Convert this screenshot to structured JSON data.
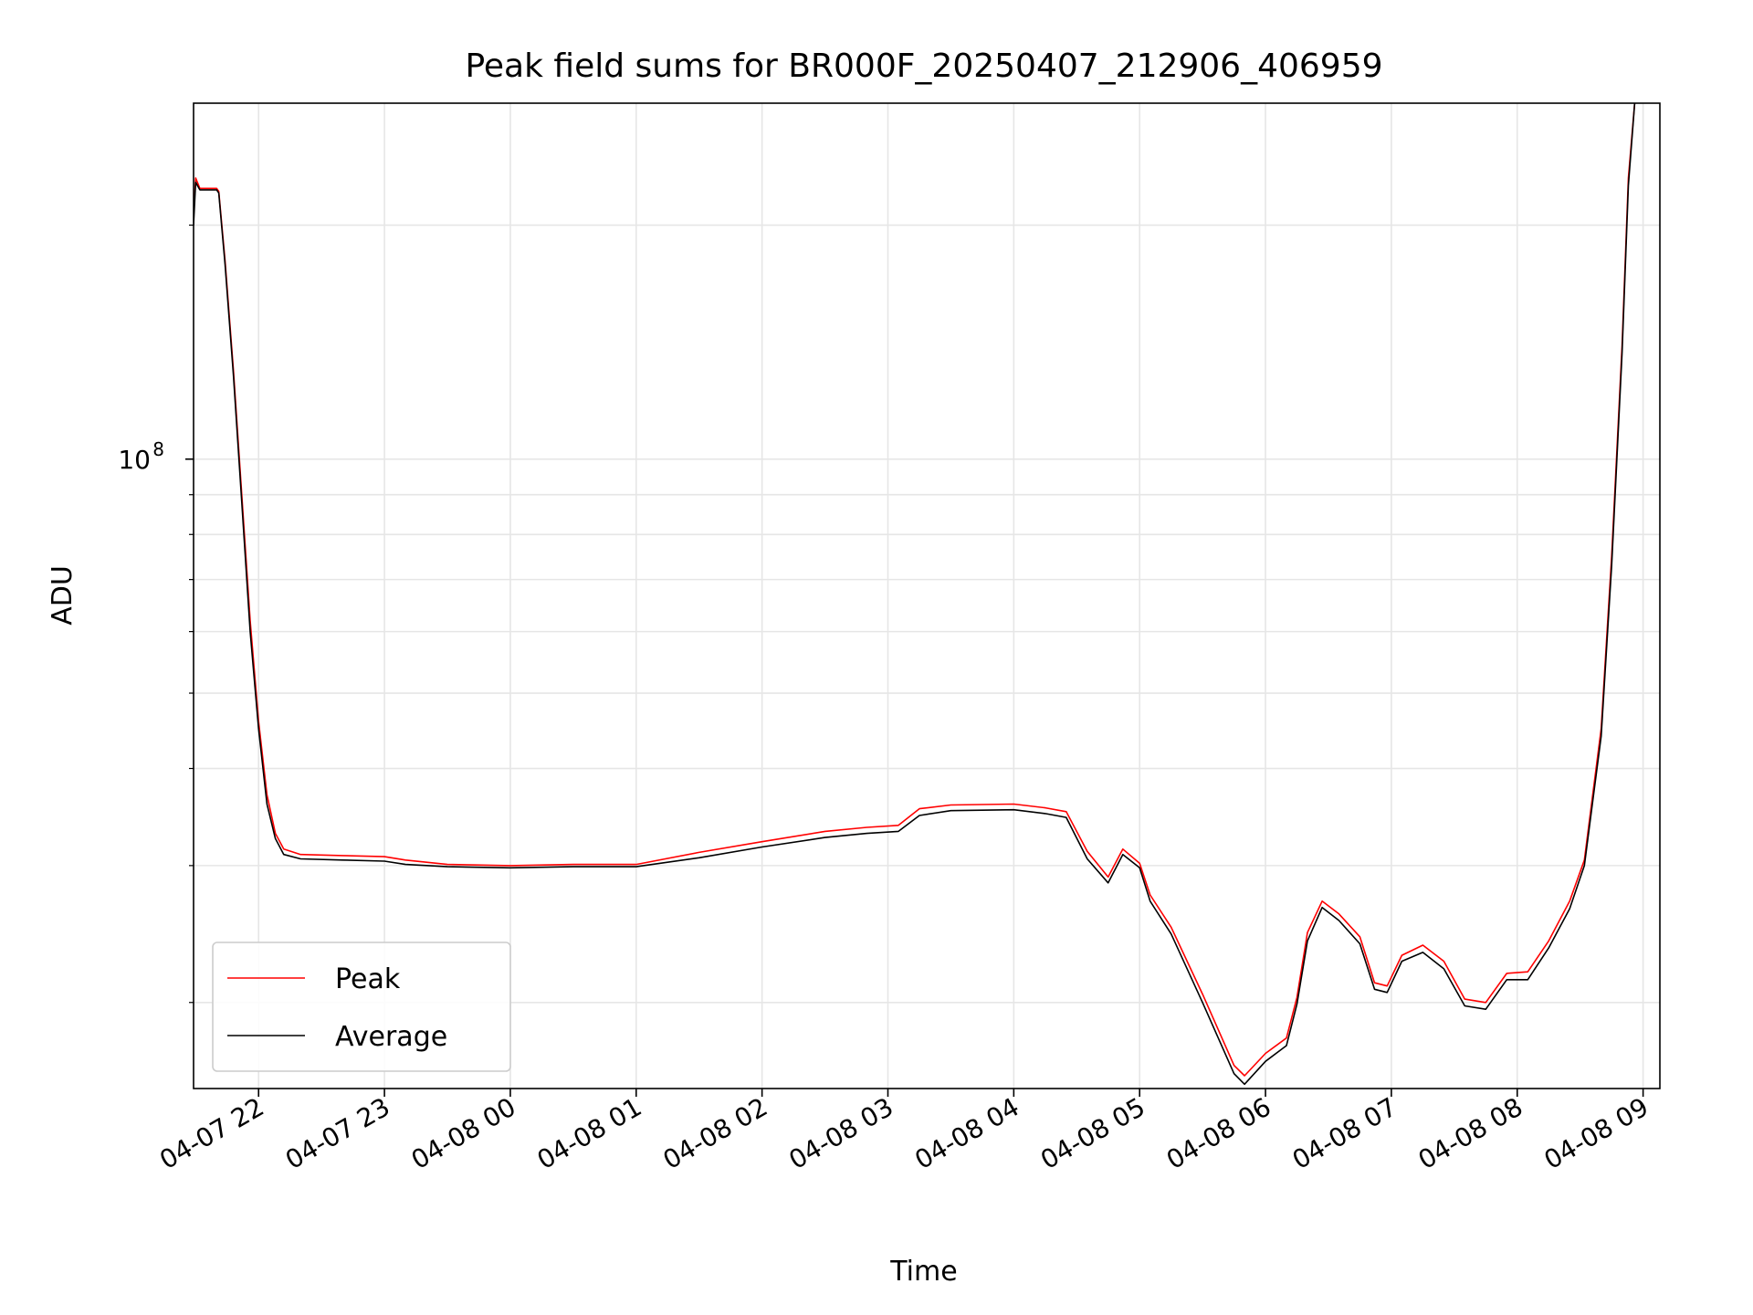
{
  "chart_data": {
    "type": "line",
    "title": "Peak field sums for BR000F_20250407_212906_406959",
    "xlabel": "Time",
    "ylabel": "ADU",
    "yscale": "log",
    "xlim": [
      "2025-04-07 21:29",
      "2025-04-08 09:08"
    ],
    "ylim": [
      15500000,
      287000000
    ],
    "x_ticks": [
      {
        "label": "04-07 22",
        "t": "2025-04-07 22:00"
      },
      {
        "label": "04-07 23",
        "t": "2025-04-07 23:00"
      },
      {
        "label": "04-08 00",
        "t": "2025-04-08 00:00"
      },
      {
        "label": "04-08 01",
        "t": "2025-04-08 01:00"
      },
      {
        "label": "04-08 02",
        "t": "2025-04-08 02:00"
      },
      {
        "label": "04-08 03",
        "t": "2025-04-08 03:00"
      },
      {
        "label": "04-08 04",
        "t": "2025-04-08 04:00"
      },
      {
        "label": "04-08 05",
        "t": "2025-04-08 05:00"
      },
      {
        "label": "04-08 06",
        "t": "2025-04-08 06:00"
      },
      {
        "label": "04-08 07",
        "t": "2025-04-08 07:00"
      },
      {
        "label": "04-08 08",
        "t": "2025-04-08 08:00"
      },
      {
        "label": "04-08 09",
        "t": "2025-04-08 09:00"
      }
    ],
    "y_major_ticks": [
      {
        "value": 100000000,
        "base": "10",
        "exp": "8"
      }
    ],
    "y_minor_ticks": [
      20000000,
      30000000,
      40000000,
      50000000,
      60000000,
      70000000,
      80000000,
      90000000,
      200000000
    ],
    "grid": true,
    "legend_position": "lower-left",
    "series": [
      {
        "name": "Peak",
        "color": "#ff0000",
        "points": [
          [
            "2025-04-07 21:29",
            205000000
          ],
          [
            "2025-04-07 21:30",
            230000000
          ],
          [
            "2025-04-07 21:32",
            223000000
          ],
          [
            "2025-04-07 21:40",
            223000000
          ],
          [
            "2025-04-07 21:41",
            221000000
          ],
          [
            "2025-04-07 21:44",
            180000000
          ],
          [
            "2025-04-07 21:48",
            130000000
          ],
          [
            "2025-04-07 21:52",
            90000000
          ],
          [
            "2025-04-07 21:56",
            62000000
          ],
          [
            "2025-04-07 22:00",
            46000000
          ],
          [
            "2025-04-07 22:04",
            37000000
          ],
          [
            "2025-04-07 22:08",
            33000000
          ],
          [
            "2025-04-07 22:12",
            31500000
          ],
          [
            "2025-04-07 22:20",
            31000000
          ],
          [
            "2025-04-07 22:40",
            30900000
          ],
          [
            "2025-04-07 23:00",
            30800000
          ],
          [
            "2025-04-07 23:10",
            30500000
          ],
          [
            "2025-04-07 23:30",
            30100000
          ],
          [
            "2025-04-08 00:00",
            30000000
          ],
          [
            "2025-04-08 00:30",
            30100000
          ],
          [
            "2025-04-08 01:00",
            30100000
          ],
          [
            "2025-04-08 01:30",
            31200000
          ],
          [
            "2025-04-08 02:00",
            32200000
          ],
          [
            "2025-04-08 02:30",
            33200000
          ],
          [
            "2025-04-08 02:50",
            33600000
          ],
          [
            "2025-04-08 03:05",
            33800000
          ],
          [
            "2025-04-08 03:15",
            35500000
          ],
          [
            "2025-04-08 03:30",
            35900000
          ],
          [
            "2025-04-08 04:00",
            36000000
          ],
          [
            "2025-04-08 04:15",
            35600000
          ],
          [
            "2025-04-08 04:25",
            35200000
          ],
          [
            "2025-04-08 04:35",
            31300000
          ],
          [
            "2025-04-08 04:45",
            29000000
          ],
          [
            "2025-04-08 04:52",
            31500000
          ],
          [
            "2025-04-08 05:00",
            30200000
          ],
          [
            "2025-04-08 05:05",
            27500000
          ],
          [
            "2025-04-08 05:15",
            25000000
          ],
          [
            "2025-04-08 05:30",
            20500000
          ],
          [
            "2025-04-08 05:45",
            16600000
          ],
          [
            "2025-04-08 05:50",
            16100000
          ],
          [
            "2025-04-08 06:00",
            17200000
          ],
          [
            "2025-04-08 06:10",
            18000000
          ],
          [
            "2025-04-08 06:15",
            20300000
          ],
          [
            "2025-04-08 06:20",
            24600000
          ],
          [
            "2025-04-08 06:27",
            27000000
          ],
          [
            "2025-04-08 06:35",
            26000000
          ],
          [
            "2025-04-08 06:45",
            24300000
          ],
          [
            "2025-04-08 06:52",
            21200000
          ],
          [
            "2025-04-08 06:58",
            21000000
          ],
          [
            "2025-04-08 07:05",
            23000000
          ],
          [
            "2025-04-08 07:15",
            23700000
          ],
          [
            "2025-04-08 07:25",
            22600000
          ],
          [
            "2025-04-08 07:35",
            20200000
          ],
          [
            "2025-04-08 07:45",
            20000000
          ],
          [
            "2025-04-08 07:55",
            21800000
          ],
          [
            "2025-04-08 08:05",
            21900000
          ],
          [
            "2025-04-08 08:15",
            24000000
          ],
          [
            "2025-04-08 08:25",
            27000000
          ],
          [
            "2025-04-08 08:32",
            30500000
          ],
          [
            "2025-04-08 08:40",
            45000000
          ],
          [
            "2025-04-08 08:45",
            75000000
          ],
          [
            "2025-04-08 08:50",
            140000000
          ],
          [
            "2025-04-08 08:53",
            230000000
          ],
          [
            "2025-04-08 08:56",
            287000000
          ]
        ]
      },
      {
        "name": "Average",
        "color": "#000000",
        "points": [
          [
            "2025-04-07 21:29",
            200000000
          ],
          [
            "2025-04-07 21:30",
            227000000
          ],
          [
            "2025-04-07 21:32",
            222000000
          ],
          [
            "2025-04-07 21:40",
            222000000
          ],
          [
            "2025-04-07 21:41",
            220000000
          ],
          [
            "2025-04-07 21:44",
            178000000
          ],
          [
            "2025-04-07 21:48",
            128000000
          ],
          [
            "2025-04-07 21:52",
            88000000
          ],
          [
            "2025-04-07 21:56",
            60000000
          ],
          [
            "2025-04-07 22:00",
            45000000
          ],
          [
            "2025-04-07 22:04",
            36000000
          ],
          [
            "2025-04-07 22:08",
            32500000
          ],
          [
            "2025-04-07 22:12",
            31000000
          ],
          [
            "2025-04-07 22:20",
            30600000
          ],
          [
            "2025-04-07 22:40",
            30500000
          ],
          [
            "2025-04-07 23:00",
            30400000
          ],
          [
            "2025-04-07 23:10",
            30100000
          ],
          [
            "2025-04-07 23:30",
            29900000
          ],
          [
            "2025-04-08 00:00",
            29800000
          ],
          [
            "2025-04-08 00:30",
            29900000
          ],
          [
            "2025-04-08 01:00",
            29900000
          ],
          [
            "2025-04-08 01:30",
            30700000
          ],
          [
            "2025-04-08 02:00",
            31700000
          ],
          [
            "2025-04-08 02:30",
            32600000
          ],
          [
            "2025-04-08 02:50",
            33000000
          ],
          [
            "2025-04-08 03:05",
            33200000
          ],
          [
            "2025-04-08 03:15",
            34800000
          ],
          [
            "2025-04-08 03:30",
            35300000
          ],
          [
            "2025-04-08 04:00",
            35400000
          ],
          [
            "2025-04-08 04:15",
            35000000
          ],
          [
            "2025-04-08 04:25",
            34600000
          ],
          [
            "2025-04-08 04:35",
            30600000
          ],
          [
            "2025-04-08 04:45",
            28500000
          ],
          [
            "2025-04-08 04:52",
            31000000
          ],
          [
            "2025-04-08 05:00",
            29800000
          ],
          [
            "2025-04-08 05:05",
            27000000
          ],
          [
            "2025-04-08 05:15",
            24500000
          ],
          [
            "2025-04-08 05:30",
            20000000
          ],
          [
            "2025-04-08 05:45",
            16200000
          ],
          [
            "2025-04-08 05:50",
            15700000
          ],
          [
            "2025-04-08 06:00",
            16800000
          ],
          [
            "2025-04-08 06:10",
            17600000
          ],
          [
            "2025-04-08 06:15",
            19900000
          ],
          [
            "2025-04-08 06:20",
            24000000
          ],
          [
            "2025-04-08 06:27",
            26500000
          ],
          [
            "2025-04-08 06:35",
            25500000
          ],
          [
            "2025-04-08 06:45",
            23800000
          ],
          [
            "2025-04-08 06:52",
            20800000
          ],
          [
            "2025-04-08 06:58",
            20600000
          ],
          [
            "2025-04-08 07:05",
            22600000
          ],
          [
            "2025-04-08 07:15",
            23200000
          ],
          [
            "2025-04-08 07:25",
            22100000
          ],
          [
            "2025-04-08 07:35",
            19800000
          ],
          [
            "2025-04-08 07:45",
            19600000
          ],
          [
            "2025-04-08 07:55",
            21400000
          ],
          [
            "2025-04-08 08:05",
            21400000
          ],
          [
            "2025-04-08 08:15",
            23500000
          ],
          [
            "2025-04-08 08:25",
            26400000
          ],
          [
            "2025-04-08 08:32",
            30000000
          ],
          [
            "2025-04-08 08:40",
            44000000
          ],
          [
            "2025-04-08 08:45",
            73000000
          ],
          [
            "2025-04-08 08:50",
            137000000
          ],
          [
            "2025-04-08 08:53",
            225000000
          ],
          [
            "2025-04-08 08:56",
            287000000
          ]
        ]
      }
    ]
  }
}
